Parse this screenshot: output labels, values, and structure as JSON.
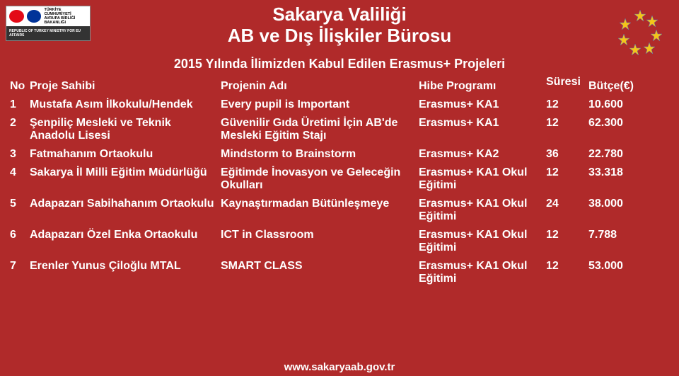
{
  "logo_left": {
    "title_lines": [
      "TÜRKİYE CUMHURİYETİ",
      "AVRUPA BİRLİĞİ BAKANLIĞI"
    ],
    "subtitle": "REPUBLIC OF TURKEY\nMINISTRY FOR EU AFFAIRS",
    "flag_tr_bg": "#e30a17",
    "flag_eu_bg": "#003399"
  },
  "logo_right": {
    "bg": "#ffffff",
    "star_color": "#f5c518"
  },
  "title": {
    "line1": "Sakarya Valiliği",
    "line2": "AB ve Dış İlişkiler Bürosu"
  },
  "subtitle": "2015 Yılında İlimizden Kabul Edilen Erasmus+ Projeleri",
  "headers": {
    "no": "No",
    "owner": "Proje Sahibi",
    "name": "Projenin Adı",
    "program": "Hibe Programı",
    "duration": "Süresi",
    "budget": "Bütçe(€)"
  },
  "rows": [
    {
      "no": "1",
      "owner": "Mustafa Asım İlkokulu/Hendek",
      "name": "Every pupil is Important",
      "program": "Erasmus+ KA1",
      "duration": "12",
      "budget": "10.600"
    },
    {
      "no": "2",
      "owner": "Şenpiliç Mesleki ve Teknik Anadolu Lisesi",
      "name": "Güvenilir Gıda Üretimi İçin AB'de Mesleki Eğitim Stajı",
      "program": "Erasmus+ KA1",
      "duration": "12",
      "budget": "62.300"
    },
    {
      "no": "3",
      "owner": "Fatmahanım Ortaokulu",
      "name": "Mindstorm to Brainstorm",
      "program": "Erasmus+ KA2",
      "duration": "36",
      "budget": "22.780"
    },
    {
      "no": "4",
      "owner": "Sakarya İl Milli Eğitim Müdürlüğü",
      "name": "Eğitimde İnovasyon ve Geleceğin Okulları",
      "program": "Erasmus+ KA1 Okul Eğitimi",
      "duration": "12",
      "budget": "33.318"
    },
    {
      "no": "5",
      "owner": "Adapazarı Sabihahanım Ortaokulu",
      "name": "Kaynaştırmadan Bütünleşmeye",
      "program": "Erasmus+ KA1 Okul Eğitimi",
      "duration": "24",
      "budget": "38.000"
    },
    {
      "no": "6",
      "owner": "Adapazarı Özel Enka Ortaokulu",
      "name": "ICT in Classroom",
      "program": "Erasmus+ KA1 Okul Eğitimi",
      "duration": "12",
      "budget": "7.788"
    },
    {
      "no": "7",
      "owner": "Erenler Yunus Çiloğlu MTAL",
      "name": "SMART CLASS",
      "program": "Erasmus+ KA1 Okul Eğitimi",
      "duration": "12",
      "budget": "53.000"
    }
  ],
  "footer": "www.sakaryaab.gov.tr",
  "colors": {
    "background": "#b02a2a",
    "text": "#ffffff"
  }
}
